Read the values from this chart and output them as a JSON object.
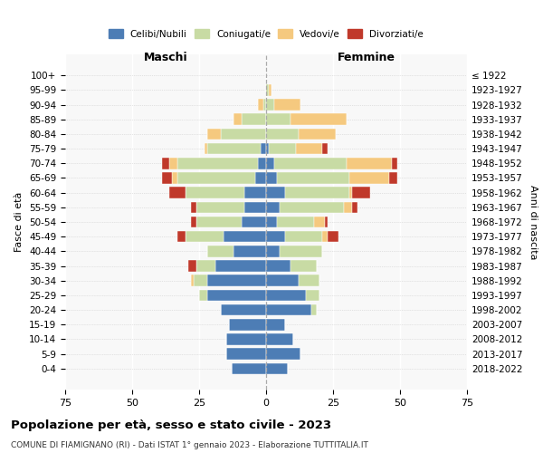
{
  "age_groups": [
    "0-4",
    "5-9",
    "10-14",
    "15-19",
    "20-24",
    "25-29",
    "30-34",
    "35-39",
    "40-44",
    "45-49",
    "50-54",
    "55-59",
    "60-64",
    "65-69",
    "70-74",
    "75-79",
    "80-84",
    "85-89",
    "90-94",
    "95-99",
    "100+"
  ],
  "birth_years": [
    "2018-2022",
    "2013-2017",
    "2008-2012",
    "2003-2007",
    "1998-2002",
    "1993-1997",
    "1988-1992",
    "1983-1987",
    "1978-1982",
    "1973-1977",
    "1968-1972",
    "1963-1967",
    "1958-1962",
    "1953-1957",
    "1948-1952",
    "1943-1947",
    "1938-1942",
    "1933-1937",
    "1928-1932",
    "1923-1927",
    "≤ 1922"
  ],
  "male": {
    "celibi": [
      13,
      15,
      15,
      14,
      17,
      22,
      22,
      19,
      12,
      16,
      9,
      8,
      8,
      4,
      3,
      2,
      0,
      0,
      0,
      0,
      0
    ],
    "coniugati": [
      0,
      0,
      0,
      0,
      0,
      3,
      5,
      7,
      10,
      14,
      17,
      18,
      22,
      29,
      30,
      20,
      17,
      9,
      1,
      0,
      0
    ],
    "vedovi": [
      0,
      0,
      0,
      0,
      0,
      0,
      1,
      0,
      0,
      0,
      0,
      0,
      0,
      2,
      3,
      1,
      5,
      3,
      2,
      0,
      0
    ],
    "divorziati": [
      0,
      0,
      0,
      0,
      0,
      0,
      0,
      3,
      0,
      3,
      2,
      2,
      6,
      4,
      3,
      0,
      0,
      0,
      0,
      0,
      0
    ]
  },
  "female": {
    "nubili": [
      8,
      13,
      10,
      7,
      17,
      15,
      12,
      9,
      5,
      7,
      4,
      5,
      7,
      4,
      3,
      1,
      0,
      0,
      0,
      0,
      0
    ],
    "coniugate": [
      0,
      0,
      0,
      0,
      2,
      5,
      8,
      10,
      16,
      14,
      14,
      24,
      24,
      27,
      27,
      10,
      12,
      9,
      3,
      1,
      0
    ],
    "vedove": [
      0,
      0,
      0,
      0,
      0,
      0,
      0,
      0,
      0,
      2,
      4,
      3,
      1,
      15,
      17,
      10,
      14,
      21,
      10,
      1,
      0
    ],
    "divorziate": [
      0,
      0,
      0,
      0,
      0,
      0,
      0,
      0,
      0,
      4,
      1,
      2,
      7,
      3,
      2,
      2,
      0,
      0,
      0,
      0,
      0
    ]
  },
  "colors": {
    "celibe": "#4d7db5",
    "coniugato": "#c8dba4",
    "vedovo": "#f5c97f",
    "divorziato": "#c0392b"
  },
  "xlim": 75,
  "title": "Popolazione per età, sesso e stato civile - 2023",
  "subtitle": "COMUNE DI FIAMIGNANO (RI) - Dati ISTAT 1° gennaio 2023 - Elaborazione TUTTITALIA.IT",
  "ylabel_left": "Fasce di età",
  "ylabel_right": "Anni di nascita",
  "xlabel_left": "Maschi",
  "xlabel_right": "Femmine",
  "legend_labels": [
    "Celibi/Nubili",
    "Coniugati/e",
    "Vedovi/e",
    "Divorziati/e"
  ]
}
